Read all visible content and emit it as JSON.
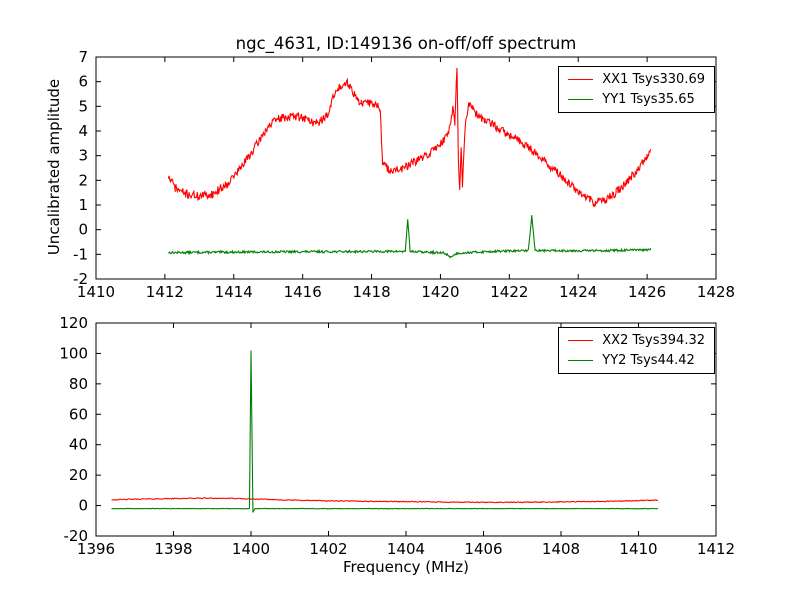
{
  "figure": {
    "background": "#ffffff",
    "axis_color": "#000000"
  },
  "chart_data": [
    {
      "type": "line",
      "title": "ngc_4631, ID:149136 on-off/off spectrum",
      "xlabel": "",
      "ylabel": "Uncalibrated amplitude",
      "xlim": [
        1410,
        1428
      ],
      "ylim": [
        -2,
        7
      ],
      "xticks": [
        1410,
        1412,
        1414,
        1416,
        1418,
        1420,
        1422,
        1424,
        1426,
        1428
      ],
      "yticks": [
        -2,
        -1,
        0,
        1,
        2,
        3,
        4,
        5,
        6,
        7
      ],
      "grid": false,
      "legend_position": "upper right",
      "series": [
        {
          "name": "XX1",
          "label": "XX1 Tsys330.69",
          "color": "#ff0000",
          "noise": 0.17,
          "seed": 71,
          "step": 0.02,
          "keypoints": [
            [
              1412.1,
              2.15
            ],
            [
              1412.3,
              1.7
            ],
            [
              1412.6,
              1.45
            ],
            [
              1413.0,
              1.35
            ],
            [
              1413.4,
              1.45
            ],
            [
              1413.8,
              1.85
            ],
            [
              1414.2,
              2.5
            ],
            [
              1414.6,
              3.3
            ],
            [
              1415.0,
              4.2
            ],
            [
              1415.3,
              4.5
            ],
            [
              1415.7,
              4.6
            ],
            [
              1416.0,
              4.55
            ],
            [
              1416.4,
              4.3
            ],
            [
              1416.7,
              4.6
            ],
            [
              1416.9,
              5.4
            ],
            [
              1417.1,
              5.85
            ],
            [
              1417.3,
              6.0
            ],
            [
              1417.5,
              5.5
            ],
            [
              1417.7,
              5.1
            ],
            [
              1418.0,
              5.15
            ],
            [
              1418.25,
              4.95
            ],
            [
              1418.32,
              2.65
            ],
            [
              1418.5,
              2.45
            ],
            [
              1418.8,
              2.4
            ],
            [
              1419.2,
              2.7
            ],
            [
              1419.6,
              3.0
            ],
            [
              1420.0,
              3.5
            ],
            [
              1420.2,
              3.8
            ],
            [
              1420.3,
              4.4
            ],
            [
              1420.36,
              5.0
            ],
            [
              1420.42,
              4.3
            ],
            [
              1420.48,
              6.7
            ],
            [
              1420.52,
              3.0
            ],
            [
              1420.56,
              1.6
            ],
            [
              1420.6,
              3.5
            ],
            [
              1420.64,
              1.7
            ],
            [
              1420.72,
              4.2
            ],
            [
              1420.82,
              5.2
            ],
            [
              1420.95,
              4.8
            ],
            [
              1421.1,
              4.6
            ],
            [
              1421.3,
              4.4
            ],
            [
              1421.6,
              4.2
            ],
            [
              1422.0,
              3.8
            ],
            [
              1422.3,
              3.6
            ],
            [
              1422.6,
              3.3
            ],
            [
              1423.0,
              2.8
            ],
            [
              1423.4,
              2.3
            ],
            [
              1423.8,
              1.8
            ],
            [
              1424.2,
              1.3
            ],
            [
              1424.5,
              1.1
            ],
            [
              1424.8,
              1.2
            ],
            [
              1425.1,
              1.5
            ],
            [
              1425.4,
              1.9
            ],
            [
              1425.7,
              2.4
            ],
            [
              1426.0,
              3.0
            ],
            [
              1426.1,
              3.3
            ]
          ]
        },
        {
          "name": "YY1",
          "label": "YY1 Tsys35.65",
          "color": "#008000",
          "noise": 0.045,
          "seed": 13,
          "step": 0.02,
          "keypoints": [
            [
              1412.1,
              -0.93
            ],
            [
              1415.0,
              -0.9
            ],
            [
              1418.9,
              -0.88
            ],
            [
              1418.98,
              -0.88
            ],
            [
              1419.05,
              0.45
            ],
            [
              1419.12,
              -0.88
            ],
            [
              1420.1,
              -0.95
            ],
            [
              1420.3,
              -1.1
            ],
            [
              1420.5,
              -0.95
            ],
            [
              1421.5,
              -0.88
            ],
            [
              1422.55,
              -0.85
            ],
            [
              1422.65,
              0.55
            ],
            [
              1422.75,
              -0.85
            ],
            [
              1424.5,
              -0.85
            ],
            [
              1426.1,
              -0.82
            ]
          ]
        }
      ]
    },
    {
      "type": "line",
      "title": "",
      "xlabel": "Frequency (MHz)",
      "ylabel": "",
      "xlim": [
        1396,
        1412
      ],
      "ylim": [
        -20,
        120
      ],
      "xticks": [
        1396,
        1398,
        1400,
        1402,
        1404,
        1406,
        1408,
        1410,
        1412
      ],
      "yticks": [
        -20,
        0,
        20,
        40,
        60,
        80,
        100,
        120
      ],
      "grid": false,
      "legend_position": "upper right",
      "series": [
        {
          "name": "XX2",
          "label": "XX2 Tsys394.32",
          "color": "#ff0000",
          "noise": 0.28,
          "seed": 42,
          "step": 0.025,
          "keypoints": [
            [
              1396.4,
              3.8
            ],
            [
              1397.0,
              4.2
            ],
            [
              1398.0,
              4.6
            ],
            [
              1398.8,
              4.9
            ],
            [
              1399.5,
              4.7
            ],
            [
              1400.0,
              4.3
            ],
            [
              1400.5,
              4.0
            ],
            [
              1401.0,
              3.6
            ],
            [
              1402.0,
              3.1
            ],
            [
              1403.0,
              2.8
            ],
            [
              1404.0,
              2.6
            ],
            [
              1405.0,
              2.3
            ],
            [
              1406.0,
              2.1
            ],
            [
              1407.0,
              2.2
            ],
            [
              1408.0,
              2.4
            ],
            [
              1409.0,
              2.7
            ],
            [
              1410.0,
              3.2
            ],
            [
              1410.5,
              3.6
            ]
          ]
        },
        {
          "name": "YY2",
          "label": "YY2 Tsys44.42",
          "color": "#008000",
          "noise": 0.15,
          "seed": 99,
          "step": 0.025,
          "keypoints": [
            [
              1396.4,
              -2.0
            ],
            [
              1398.0,
              -2.0
            ],
            [
              1399.9,
              -2.0
            ],
            [
              1399.96,
              -2.0
            ],
            [
              1400.0,
              102.0
            ],
            [
              1400.05,
              -4.5
            ],
            [
              1400.1,
              -2.0
            ],
            [
              1404.0,
              -2.0
            ],
            [
              1408.0,
              -2.0
            ],
            [
              1410.5,
              -2.0
            ]
          ]
        }
      ]
    }
  ]
}
